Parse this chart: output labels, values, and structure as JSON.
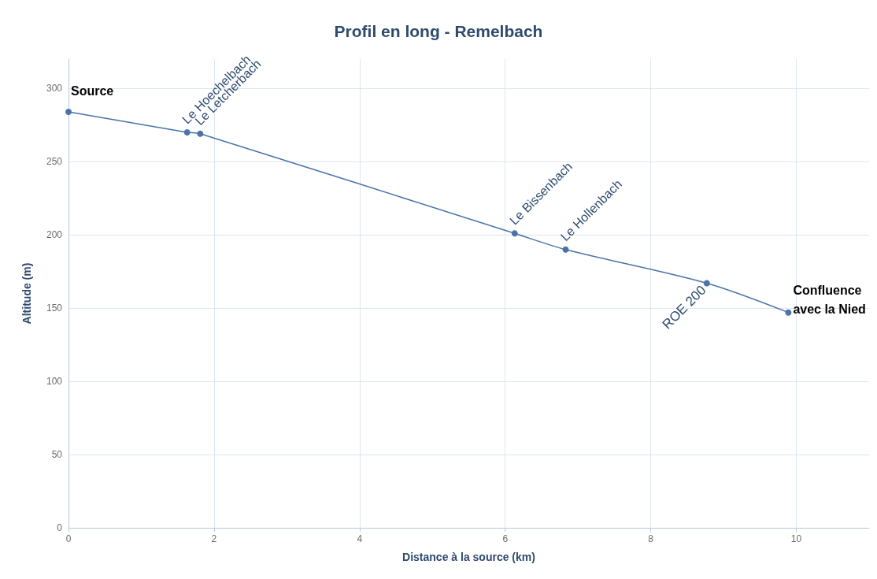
{
  "chart_data": {
    "type": "line",
    "title": "Profil en long - Remelbach",
    "xlabel": "Distance à la source (km)",
    "ylabel": "Altitude (m)",
    "x": [
      0,
      1.63,
      1.81,
      6.13,
      6.83,
      8.77,
      9.89
    ],
    "series": [
      {
        "color": "#4a73a8",
        "values": [
          284,
          270,
          269,
          201,
          190,
          167,
          147
        ]
      }
    ],
    "xlim": [
      0,
      11
    ],
    "xticks": [
      0,
      2,
      4,
      6,
      8,
      10
    ],
    "ylim": [
      0,
      320
    ],
    "yticks": [
      0,
      50,
      100,
      150,
      200,
      250,
      300
    ],
    "grid": true,
    "marker": "circle",
    "line_style": "solid",
    "annotations": [
      {
        "text": "Source",
        "x": 0,
        "y": 284
      },
      {
        "text": "Le Hoechelbach",
        "x": 1.63,
        "y": 270
      },
      {
        "text": "Le Letcherbach",
        "x": 1.81,
        "y": 269
      },
      {
        "text": "Le Bissenbach",
        "x": 6.13,
        "y": 201
      },
      {
        "text": "Le Hollenbach",
        "x": 6.83,
        "y": 190
      },
      {
        "text": "ROE 200",
        "x": 8.77,
        "y": 167
      },
      {
        "text": "Confluence\navec la Nied",
        "x": 9.89,
        "y": 147
      }
    ]
  }
}
